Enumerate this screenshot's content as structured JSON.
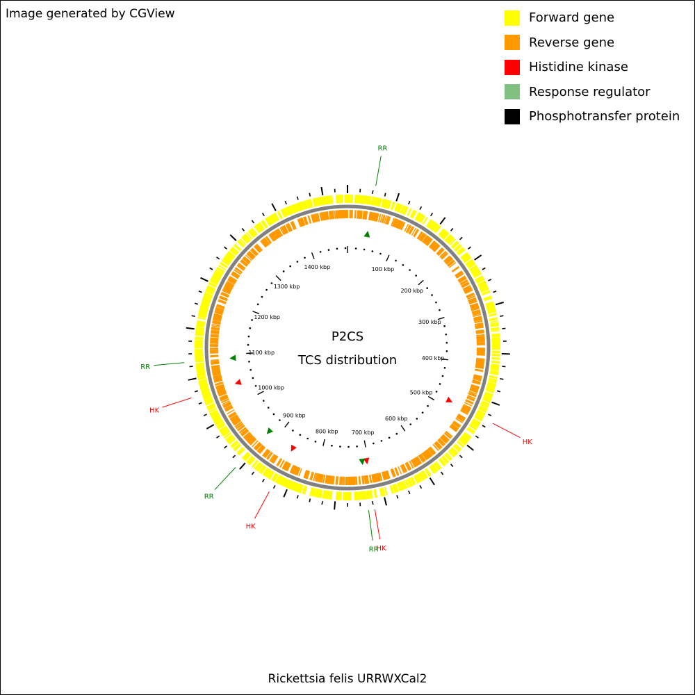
{
  "header": {
    "credit": "Image generated by CGView"
  },
  "legend": [
    {
      "label": "Forward gene",
      "color": "#ffff00"
    },
    {
      "label": "Reverse gene",
      "color": "#ff9900"
    },
    {
      "label": "Histidine kinase",
      "color": "#ff0000"
    },
    {
      "label": "Response regulator",
      "color": "#80c080"
    },
    {
      "label": "Phosphotransfer protein",
      "color": "#000000"
    }
  ],
  "map": {
    "title_line1": "P2CS",
    "title_line2": "TCS distribution",
    "organism": "Rickettsia felis URRWXCal2",
    "genome_length_kbp": 1485,
    "tick_labels": [
      "100 kbp",
      "200 kbp",
      "300 kbp",
      "400 kbp",
      "500 kbp",
      "600 kbp",
      "700 kbp",
      "800 kbp",
      "900 kbp",
      "1000 kbp",
      "1100 kbp",
      "1200 kbp",
      "1300 kbp",
      "1400 kbp"
    ],
    "backbone_color": "#808080",
    "hk_color": "#ff0000",
    "rr_color": "#008000",
    "features": [
      {
        "type": "RR",
        "label": "RR",
        "position_kbp": 41
      },
      {
        "type": "HK",
        "label": "HK",
        "position_kbp": 485
      },
      {
        "type": "HK",
        "label": "HK",
        "position_kbp": 703
      },
      {
        "type": "RR",
        "label": "RR",
        "position_kbp": 712
      },
      {
        "type": "HK",
        "label": "HK",
        "position_kbp": 860
      },
      {
        "type": "RR",
        "label": "RR",
        "position_kbp": 920
      },
      {
        "type": "HK",
        "label": "HK",
        "position_kbp": 1040
      },
      {
        "type": "RR",
        "label": "RR",
        "position_kbp": 1092
      }
    ]
  }
}
